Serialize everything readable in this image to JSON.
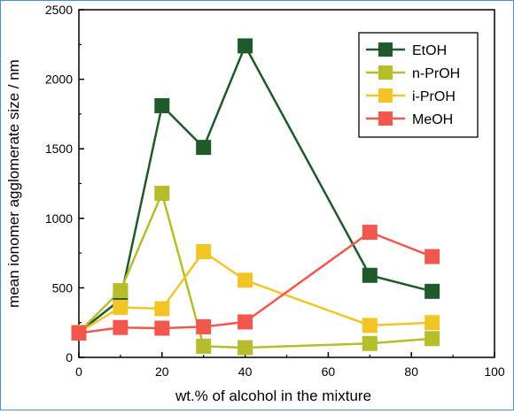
{
  "chart_data": {
    "type": "line",
    "title": "",
    "xlabel": "wt.% of alcohol in the mixture",
    "ylabel": "mean ionomer agglomerate size / nm",
    "xlim": [
      0,
      100
    ],
    "ylim": [
      0,
      2500
    ],
    "xticks": [
      "0",
      "20",
      "40",
      "60",
      "80",
      "100"
    ],
    "yticks": [
      "0",
      "500",
      "1000",
      "1500",
      "2000",
      "2500"
    ],
    "grid": false,
    "legend_position": "top-right",
    "series": [
      {
        "name": "EtOH",
        "color": "#1e5a2a",
        "x": [
          0,
          10,
          20,
          30,
          40,
          70,
          85
        ],
        "y": [
          180,
          415,
          1810,
          1510,
          2240,
          590,
          475
        ]
      },
      {
        "name": "n-PrOH",
        "color": "#b5bd2a",
        "x": [
          0,
          10,
          20,
          30,
          40,
          70,
          85
        ],
        "y": [
          180,
          480,
          1180,
          80,
          70,
          100,
          135
        ]
      },
      {
        "name": "i-PrOH",
        "color": "#f2c525",
        "x": [
          0,
          10,
          20,
          30,
          40,
          70,
          85
        ],
        "y": [
          180,
          360,
          350,
          760,
          555,
          230,
          250
        ]
      },
      {
        "name": "MeOH",
        "color": "#f2574d",
        "x": [
          0,
          10,
          20,
          30,
          40,
          70,
          85
        ],
        "y": [
          175,
          215,
          210,
          220,
          255,
          900,
          725
        ]
      }
    ]
  }
}
